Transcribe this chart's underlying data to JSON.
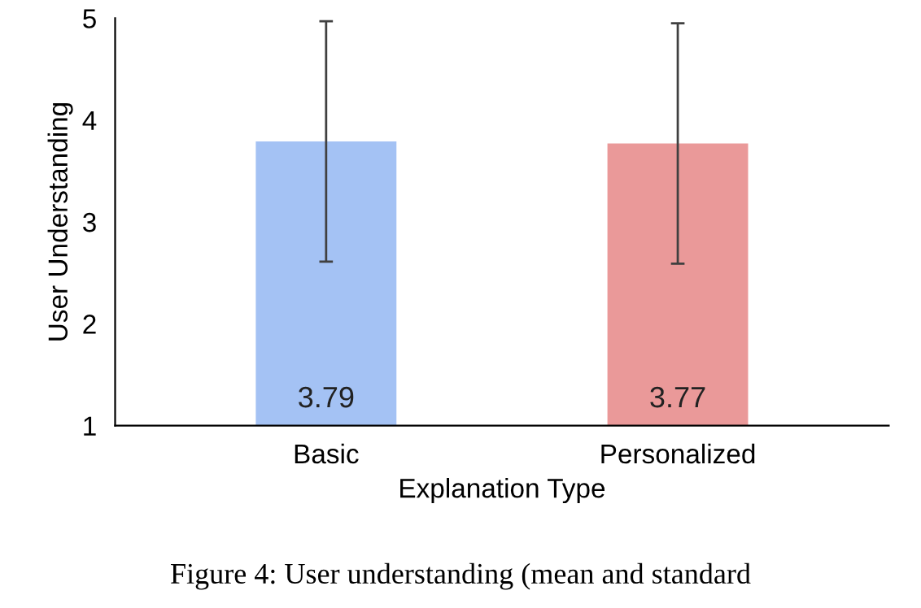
{
  "chart_data": {
    "type": "bar",
    "xlabel": "Explanation Type",
    "ylabel": "User Understanding",
    "categories": [
      "Basic",
      "Personalized"
    ],
    "values": [
      3.79,
      3.77
    ],
    "colors": [
      "#a4c2f4",
      "#ea9999"
    ],
    "errors": [
      1.18,
      1.18
    ],
    "ylim": [
      1,
      5
    ],
    "yticks": [
      1,
      2,
      3,
      4,
      5
    ],
    "grid": false,
    "legend": false,
    "data_labels": true,
    "annotations": [
      "Figure 4: User understanding (mean and standard"
    ]
  }
}
